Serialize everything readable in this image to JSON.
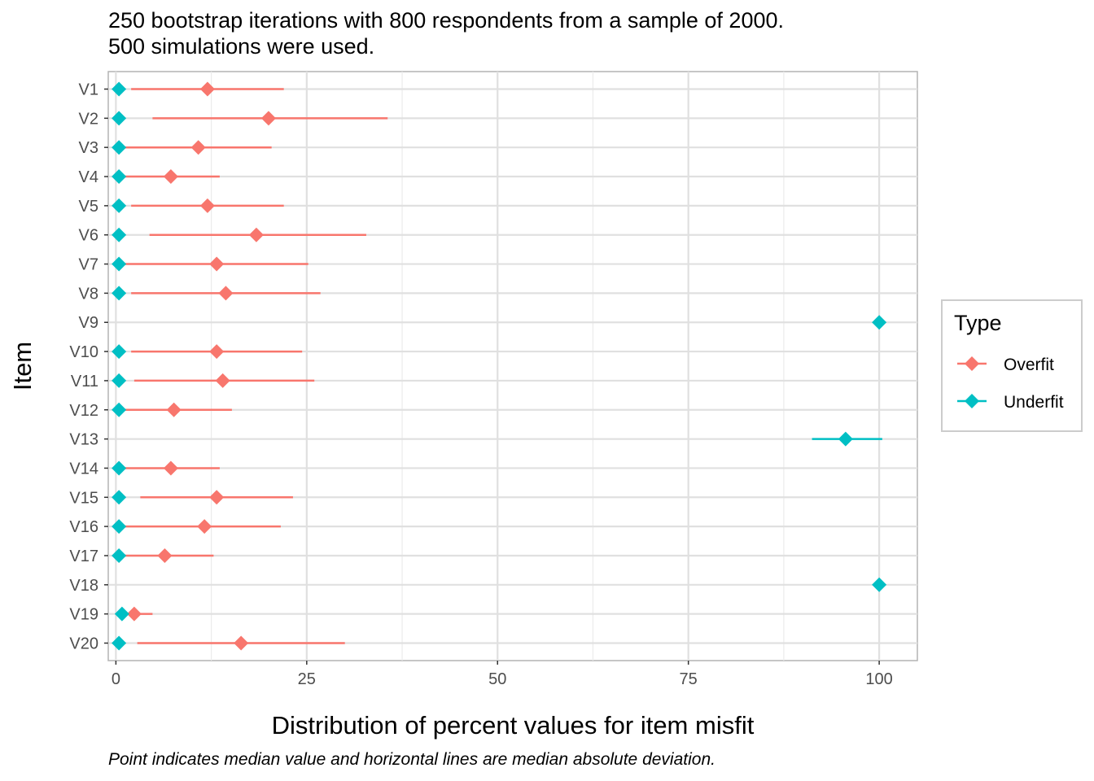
{
  "chart_data": {
    "type": "dot-range",
    "subtitle_lines": [
      "250 bootstrap iterations with 800 respondents from a sample of 2000.",
      "500 simulations were used."
    ],
    "xlabel": "Distribution of percent values for item misfit",
    "ylabel": "Item",
    "caption": "Point indicates median value and horizontal lines are median absolute deviation.",
    "xlim": [
      -1,
      105
    ],
    "x_ticks": [
      0,
      25,
      50,
      75,
      100
    ],
    "x_tick_labels": [
      "0",
      "25",
      "50",
      "75",
      "100"
    ],
    "grid": true,
    "legend": {
      "title": "Type",
      "placement": "right",
      "entries": [
        "Overfit",
        "Underfit"
      ]
    },
    "colors": {
      "Overfit": "#F8766D",
      "Underfit": "#00BFC4"
    },
    "items": [
      "V1",
      "V2",
      "V3",
      "V4",
      "V5",
      "V6",
      "V7",
      "V8",
      "V9",
      "V10",
      "V11",
      "V12",
      "V13",
      "V14",
      "V15",
      "V16",
      "V17",
      "V18",
      "V19",
      "V20"
    ],
    "series": [
      {
        "name": "Overfit",
        "median": [
          12.0,
          20.0,
          10.8,
          7.2,
          12.0,
          18.4,
          13.2,
          14.4,
          null,
          13.2,
          14.0,
          7.6,
          null,
          7.2,
          13.2,
          11.6,
          6.4,
          null,
          2.4,
          16.4
        ],
        "low": [
          2.0,
          4.8,
          1.2,
          0.8,
          2.0,
          4.4,
          1.2,
          2.0,
          null,
          2.0,
          2.4,
          0.0,
          null,
          0.8,
          3.2,
          0.8,
          0.0,
          null,
          0.4,
          2.8
        ],
        "high": [
          22.0,
          35.6,
          20.4,
          13.6,
          22.0,
          32.8,
          25.2,
          26.8,
          null,
          24.4,
          26.0,
          15.2,
          null,
          13.6,
          23.2,
          21.6,
          12.8,
          null,
          4.8,
          30.0
        ]
      },
      {
        "name": "Underfit",
        "median": [
          0.4,
          0.4,
          0.4,
          0.4,
          0.4,
          0.4,
          0.4,
          0.4,
          100.0,
          0.4,
          0.4,
          0.4,
          95.6,
          0.4,
          0.4,
          0.4,
          0.4,
          100.0,
          0.8,
          0.4
        ],
        "low": [
          null,
          null,
          null,
          null,
          null,
          null,
          null,
          null,
          null,
          null,
          null,
          null,
          91.2,
          null,
          null,
          null,
          null,
          null,
          null,
          null
        ],
        "high": [
          null,
          null,
          null,
          null,
          null,
          null,
          null,
          null,
          null,
          null,
          null,
          null,
          100.4,
          null,
          null,
          null,
          null,
          null,
          null,
          null
        ]
      }
    ]
  }
}
